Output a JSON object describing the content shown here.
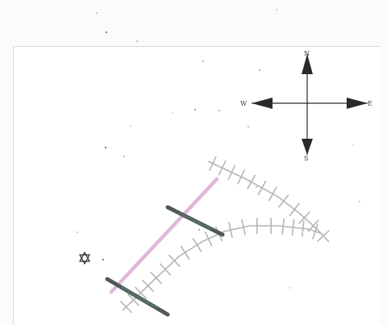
{
  "map": {
    "compass": {
      "north_label": "N",
      "south_label": "S",
      "east_label": "E",
      "west_label": "W"
    },
    "symbols": {
      "star": "star-of-david-icon"
    },
    "colors": {
      "background": "#ffffff",
      "track_outline": "#b8b8b8",
      "road_pink": "#e2b5dc",
      "bar_dark": "#4f5a5a",
      "bar_green": "#5f7e72",
      "ink": "#2a2a2a"
    }
  }
}
